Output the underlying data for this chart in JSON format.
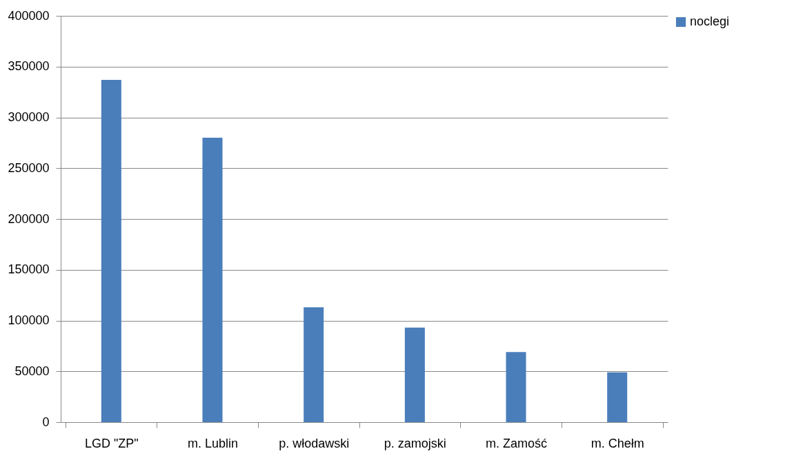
{
  "chart_data": {
    "type": "bar",
    "categories": [
      "LGD \"ZP\"",
      "m. Lublin",
      "p. włodawski",
      "p. zamojski",
      "m. Zamość",
      "m. Chełm"
    ],
    "series": [
      {
        "name": "noclegi",
        "color": "#4a7ebb",
        "values": [
          337000,
          280000,
          113000,
          93000,
          69000,
          49000
        ]
      }
    ],
    "ylim": [
      0,
      400000
    ],
    "yticks": [
      0,
      50000,
      100000,
      150000,
      200000,
      250000,
      300000,
      350000,
      400000
    ],
    "grid": "y",
    "legend": "right"
  }
}
